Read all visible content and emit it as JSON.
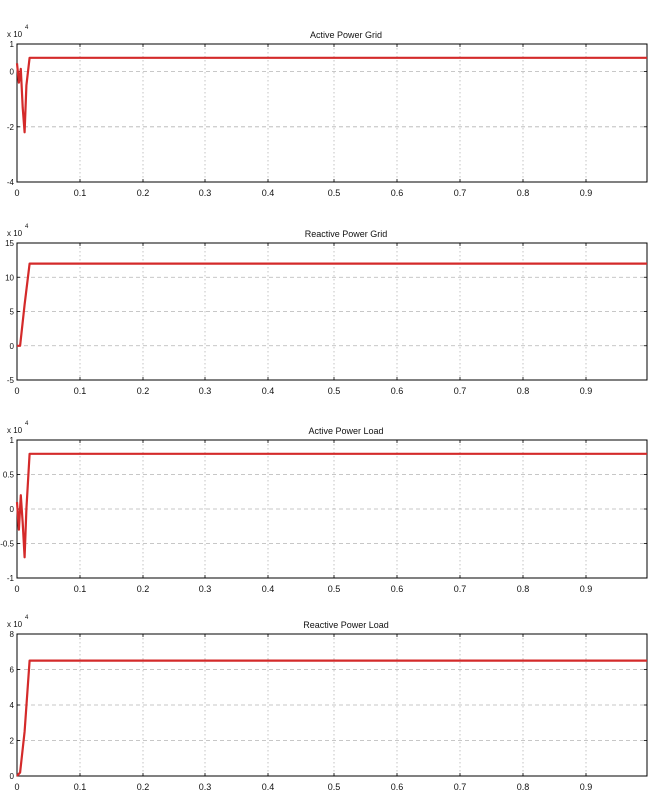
{
  "chart_data": [
    {
      "type": "line",
      "title": "Active Power Grid",
      "exponent_label": "x 10",
      "exponent_power": "4",
      "xlim": [
        0,
        1
      ],
      "ylim": [
        -4,
        1
      ],
      "x_ticks": [
        "0",
        "0.1",
        "0.2",
        "0.3",
        "0.4",
        "0.5",
        "0.6",
        "0.7",
        "0.8",
        "0.9"
      ],
      "y_ticks": [
        {
          "v": 1,
          "label": "1"
        },
        {
          "v": 0,
          "label": "0"
        },
        {
          "v": -2,
          "label": "-2"
        },
        {
          "v": -4,
          "label": "-4"
        }
      ],
      "grid": true,
      "series": [
        {
          "color": "#d42a2a",
          "x": [
            0,
            0.003,
            0.006,
            0.009,
            0.012,
            0.015,
            0.02,
            1.0
          ],
          "y": [
            0.3,
            -0.4,
            0.1,
            -1.3,
            -2.2,
            -0.5,
            0.5,
            0.5
          ]
        }
      ]
    },
    {
      "type": "line",
      "title": "Reactive Power Grid",
      "exponent_label": "x 10",
      "exponent_power": "4",
      "xlim": [
        0,
        1
      ],
      "ylim": [
        -5,
        15
      ],
      "x_ticks": [
        "0",
        "0.1",
        "0.2",
        "0.3",
        "0.4",
        "0.5",
        "0.6",
        "0.7",
        "0.8",
        "0.9"
      ],
      "y_ticks": [
        {
          "v": 15,
          "label": "15"
        },
        {
          "v": 10,
          "label": "10"
        },
        {
          "v": 5,
          "label": "5"
        },
        {
          "v": 0,
          "label": "0"
        },
        {
          "v": -5,
          "label": "-5"
        }
      ],
      "grid": true,
      "series": [
        {
          "color": "#d42a2a",
          "x": [
            0,
            0.005,
            0.012,
            0.02,
            1.0
          ],
          "y": [
            0,
            0,
            6,
            12,
            12
          ]
        }
      ]
    },
    {
      "type": "line",
      "title": "Active Power Load",
      "exponent_label": "x 10",
      "exponent_power": "4",
      "xlim": [
        0,
        1
      ],
      "ylim": [
        -1,
        1
      ],
      "x_ticks": [
        "0",
        "0.1",
        "0.2",
        "0.3",
        "0.4",
        "0.5",
        "0.6",
        "0.7",
        "0.8",
        "0.9"
      ],
      "y_ticks": [
        {
          "v": 1,
          "label": "1"
        },
        {
          "v": 0.5,
          "label": "0.5"
        },
        {
          "v": 0,
          "label": "0"
        },
        {
          "v": -0.5,
          "label": "-0.5"
        },
        {
          "v": -1,
          "label": "-1"
        }
      ],
      "grid": true,
      "series": [
        {
          "color": "#d42a2a",
          "x": [
            0,
            0.003,
            0.006,
            0.009,
            0.012,
            0.015,
            0.02,
            1.0
          ],
          "y": [
            0.1,
            -0.3,
            0.2,
            -0.2,
            -0.7,
            0.0,
            0.8,
            0.8
          ]
        }
      ]
    },
    {
      "type": "line",
      "title": "Reactive Power Load",
      "exponent_label": "x 10",
      "exponent_power": "4",
      "xlim": [
        0,
        1
      ],
      "ylim": [
        0,
        8
      ],
      "x_ticks": [
        "0",
        "0.1",
        "0.2",
        "0.3",
        "0.4",
        "0.5",
        "0.6",
        "0.7",
        "0.8",
        "0.9"
      ],
      "y_ticks": [
        {
          "v": 8,
          "label": "8"
        },
        {
          "v": 6,
          "label": "6"
        },
        {
          "v": 4,
          "label": "4"
        },
        {
          "v": 2,
          "label": "2"
        },
        {
          "v": 0,
          "label": "0"
        }
      ],
      "grid": true,
      "series": [
        {
          "color": "#d42a2a",
          "x": [
            0,
            0.005,
            0.012,
            0.02,
            1.0
          ],
          "y": [
            0,
            0.2,
            2.5,
            6.5,
            6.5
          ]
        }
      ]
    }
  ]
}
